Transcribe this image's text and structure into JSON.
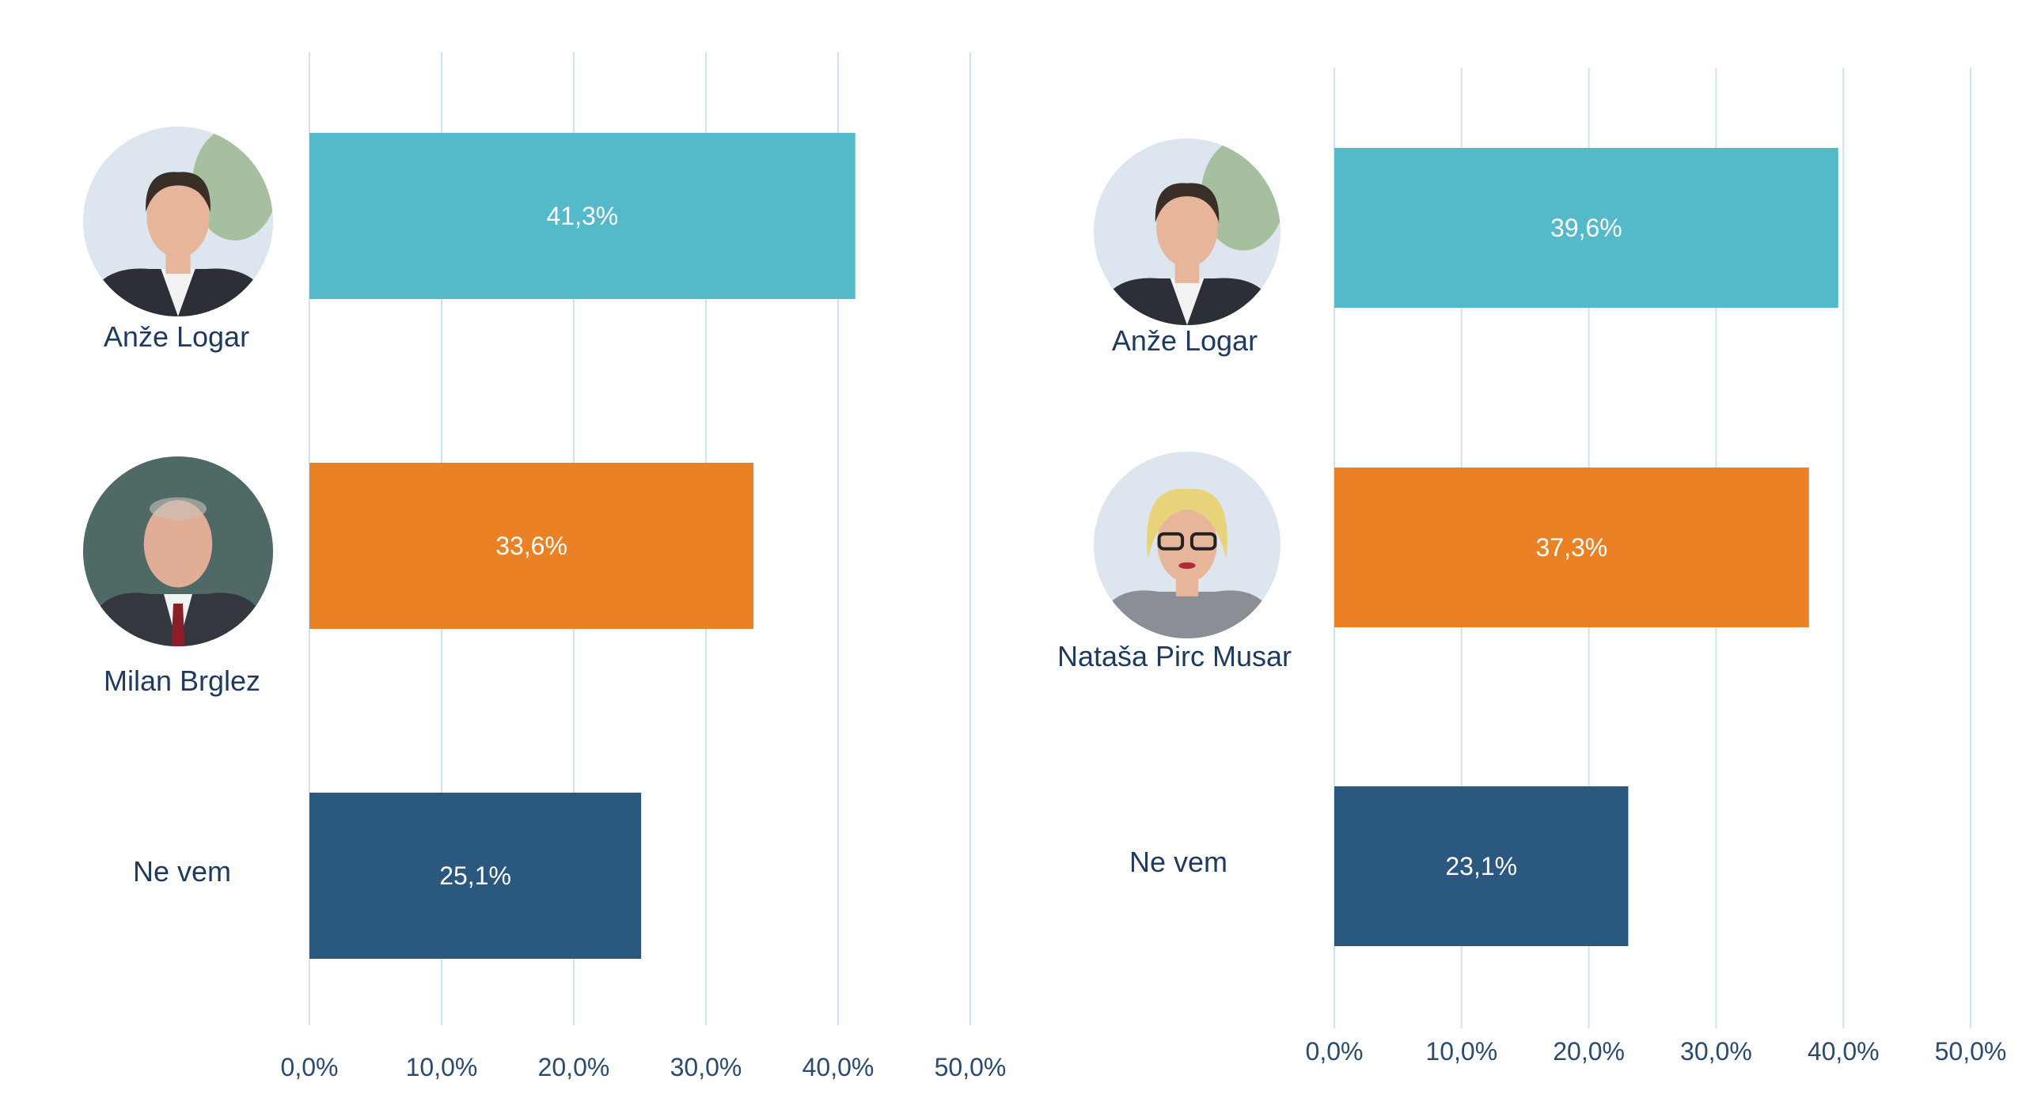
{
  "colors": {
    "grid": "#cfe3f2",
    "label_text": "#1f3a5f",
    "tick_text": "#2a4a6e",
    "value_text": "#ffffff",
    "photo_bg": "#dde6ee",
    "photo_skin": "#e7b59a",
    "photo_hair_dark": "#3a2f28",
    "photo_hair_light": "#e8d27a",
    "photo_suit": "#2c2f36",
    "photo_shirt": "#f2f2f2",
    "photo_plant": "#8fae7c",
    "photo_blazer_grey": "#8a8f96"
  },
  "chart_data": [
    {
      "type": "bar",
      "orientation": "horizontal",
      "title": "",
      "xlabel": "",
      "ylabel": "",
      "xlim": [
        0,
        50
      ],
      "ticks": [
        0,
        10,
        20,
        30,
        40,
        50
      ],
      "tick_labels": [
        "0,0%",
        "10,0%",
        "20,0%",
        "30,0%",
        "40,0%",
        "50,0%"
      ],
      "grid": true,
      "categories": [
        "Anže Logar",
        "Milan Brglez",
        "Ne vem"
      ],
      "values": [
        41.3,
        33.6,
        25.1
      ],
      "value_labels": [
        "41,3%",
        "33,6%",
        "25,1%"
      ],
      "colors": [
        "#54bac9",
        "#ea8225",
        "#2b587e"
      ],
      "photos": [
        "man-short-hair-icon",
        "bald-man-icon",
        "none"
      ]
    },
    {
      "type": "bar",
      "orientation": "horizontal",
      "title": "",
      "xlabel": "",
      "ylabel": "",
      "xlim": [
        0,
        50
      ],
      "ticks": [
        0,
        10,
        20,
        30,
        40,
        50
      ],
      "tick_labels": [
        "0,0%",
        "10,0%",
        "20,0%",
        "30,0%",
        "40,0%",
        "50,0%"
      ],
      "grid": true,
      "categories": [
        "Anže Logar",
        "Nataša Pirc Musar",
        "Ne vem"
      ],
      "values": [
        39.6,
        37.3,
        23.1
      ],
      "value_labels": [
        "39,6%",
        "37,3%",
        "23,1%"
      ],
      "colors": [
        "#54bac9",
        "#ea8225",
        "#2b587e"
      ],
      "photos": [
        "man-short-hair-icon",
        "woman-glasses-icon",
        "none"
      ]
    }
  ]
}
